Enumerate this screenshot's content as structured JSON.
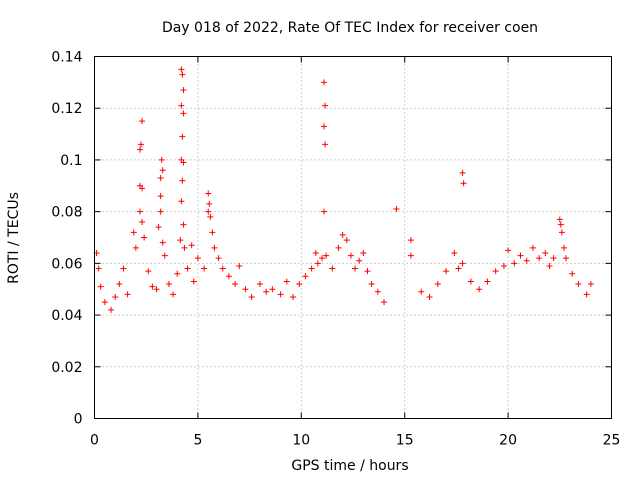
{
  "chart_data": {
    "type": "scatter",
    "title": "Day 018 of 2022, Rate Of TEC Index for receiver coen",
    "xlabel": "GPS time / hours",
    "ylabel": "ROTI / TECUs",
    "xlim": [
      0,
      25
    ],
    "ylim": [
      0,
      0.14
    ],
    "xticks": [
      "0",
      "5",
      "10",
      "15",
      "20",
      "25"
    ],
    "yticks": [
      "0",
      "0.02",
      "0.04",
      "0.06",
      "0.08",
      "0.1",
      "0.12",
      "0.14"
    ],
    "grid": true,
    "marker": "plus",
    "color": "#ff0000",
    "series": [
      {
        "points": [
          [
            0.1,
            0.064
          ],
          [
            0.2,
            0.058
          ],
          [
            0.3,
            0.051
          ],
          [
            0.5,
            0.045
          ],
          [
            0.8,
            0.042
          ],
          [
            1.0,
            0.047
          ],
          [
            1.2,
            0.052
          ],
          [
            1.4,
            0.058
          ],
          [
            1.6,
            0.048
          ],
          [
            1.9,
            0.072
          ],
          [
            2.0,
            0.066
          ],
          [
            2.2,
            0.104
          ],
          [
            2.25,
            0.106
          ],
          [
            2.3,
            0.115
          ],
          [
            2.2,
            0.09
          ],
          [
            2.3,
            0.089
          ],
          [
            2.2,
            0.08
          ],
          [
            2.3,
            0.076
          ],
          [
            2.4,
            0.07
          ],
          [
            2.6,
            0.057
          ],
          [
            2.8,
            0.051
          ],
          [
            3.0,
            0.05
          ],
          [
            3.1,
            0.074
          ],
          [
            3.2,
            0.086
          ],
          [
            3.2,
            0.093
          ],
          [
            3.25,
            0.1
          ],
          [
            3.3,
            0.096
          ],
          [
            3.2,
            0.08
          ],
          [
            3.3,
            0.068
          ],
          [
            3.4,
            0.063
          ],
          [
            3.6,
            0.052
          ],
          [
            3.8,
            0.048
          ],
          [
            4.0,
            0.056
          ],
          [
            4.2,
            0.135
          ],
          [
            4.25,
            0.133
          ],
          [
            4.3,
            0.127
          ],
          [
            4.2,
            0.121
          ],
          [
            4.3,
            0.118
          ],
          [
            4.25,
            0.109
          ],
          [
            4.2,
            0.1
          ],
          [
            4.3,
            0.099
          ],
          [
            4.25,
            0.092
          ],
          [
            4.2,
            0.084
          ],
          [
            4.3,
            0.075
          ],
          [
            4.15,
            0.069
          ],
          [
            4.35,
            0.066
          ],
          [
            4.5,
            0.058
          ],
          [
            4.7,
            0.067
          ],
          [
            4.8,
            0.053
          ],
          [
            5.0,
            0.062
          ],
          [
            5.3,
            0.058
          ],
          [
            5.5,
            0.087
          ],
          [
            5.55,
            0.083
          ],
          [
            5.5,
            0.08
          ],
          [
            5.6,
            0.078
          ],
          [
            5.7,
            0.072
          ],
          [
            5.8,
            0.066
          ],
          [
            6.0,
            0.062
          ],
          [
            6.2,
            0.058
          ],
          [
            6.5,
            0.055
          ],
          [
            6.8,
            0.052
          ],
          [
            7.0,
            0.059
          ],
          [
            7.3,
            0.05
          ],
          [
            7.6,
            0.047
          ],
          [
            8.0,
            0.052
          ],
          [
            8.3,
            0.049
          ],
          [
            8.6,
            0.05
          ],
          [
            9.0,
            0.048
          ],
          [
            9.3,
            0.053
          ],
          [
            9.6,
            0.047
          ],
          [
            9.9,
            0.052
          ],
          [
            10.2,
            0.055
          ],
          [
            10.5,
            0.058
          ],
          [
            10.7,
            0.064
          ],
          [
            10.8,
            0.06
          ],
          [
            11.0,
            0.062
          ],
          [
            11.1,
            0.13
          ],
          [
            11.15,
            0.121
          ],
          [
            11.1,
            0.113
          ],
          [
            11.15,
            0.106
          ],
          [
            11.1,
            0.08
          ],
          [
            11.2,
            0.063
          ],
          [
            11.5,
            0.058
          ],
          [
            11.8,
            0.066
          ],
          [
            12.0,
            0.071
          ],
          [
            12.2,
            0.069
          ],
          [
            12.4,
            0.063
          ],
          [
            12.6,
            0.058
          ],
          [
            12.8,
            0.061
          ],
          [
            13.0,
            0.064
          ],
          [
            13.2,
            0.057
          ],
          [
            13.4,
            0.052
          ],
          [
            13.7,
            0.049
          ],
          [
            14.0,
            0.045
          ],
          [
            14.6,
            0.081
          ],
          [
            15.3,
            0.069
          ],
          [
            15.3,
            0.063
          ],
          [
            15.8,
            0.049
          ],
          [
            16.2,
            0.047
          ],
          [
            16.6,
            0.052
          ],
          [
            17.0,
            0.057
          ],
          [
            17.4,
            0.064
          ],
          [
            17.6,
            0.058
          ],
          [
            17.8,
            0.06
          ],
          [
            17.8,
            0.095
          ],
          [
            17.85,
            0.091
          ],
          [
            18.2,
            0.053
          ],
          [
            18.6,
            0.05
          ],
          [
            19.0,
            0.053
          ],
          [
            19.4,
            0.057
          ],
          [
            19.8,
            0.059
          ],
          [
            20.0,
            0.065
          ],
          [
            20.3,
            0.06
          ],
          [
            20.6,
            0.063
          ],
          [
            20.9,
            0.061
          ],
          [
            21.2,
            0.066
          ],
          [
            21.5,
            0.062
          ],
          [
            21.8,
            0.064
          ],
          [
            22.0,
            0.059
          ],
          [
            22.2,
            0.062
          ],
          [
            22.5,
            0.077
          ],
          [
            22.55,
            0.075
          ],
          [
            22.6,
            0.072
          ],
          [
            22.7,
            0.066
          ],
          [
            22.8,
            0.062
          ],
          [
            23.1,
            0.056
          ],
          [
            23.4,
            0.052
          ],
          [
            23.8,
            0.048
          ],
          [
            24.0,
            0.052
          ]
        ]
      }
    ]
  }
}
